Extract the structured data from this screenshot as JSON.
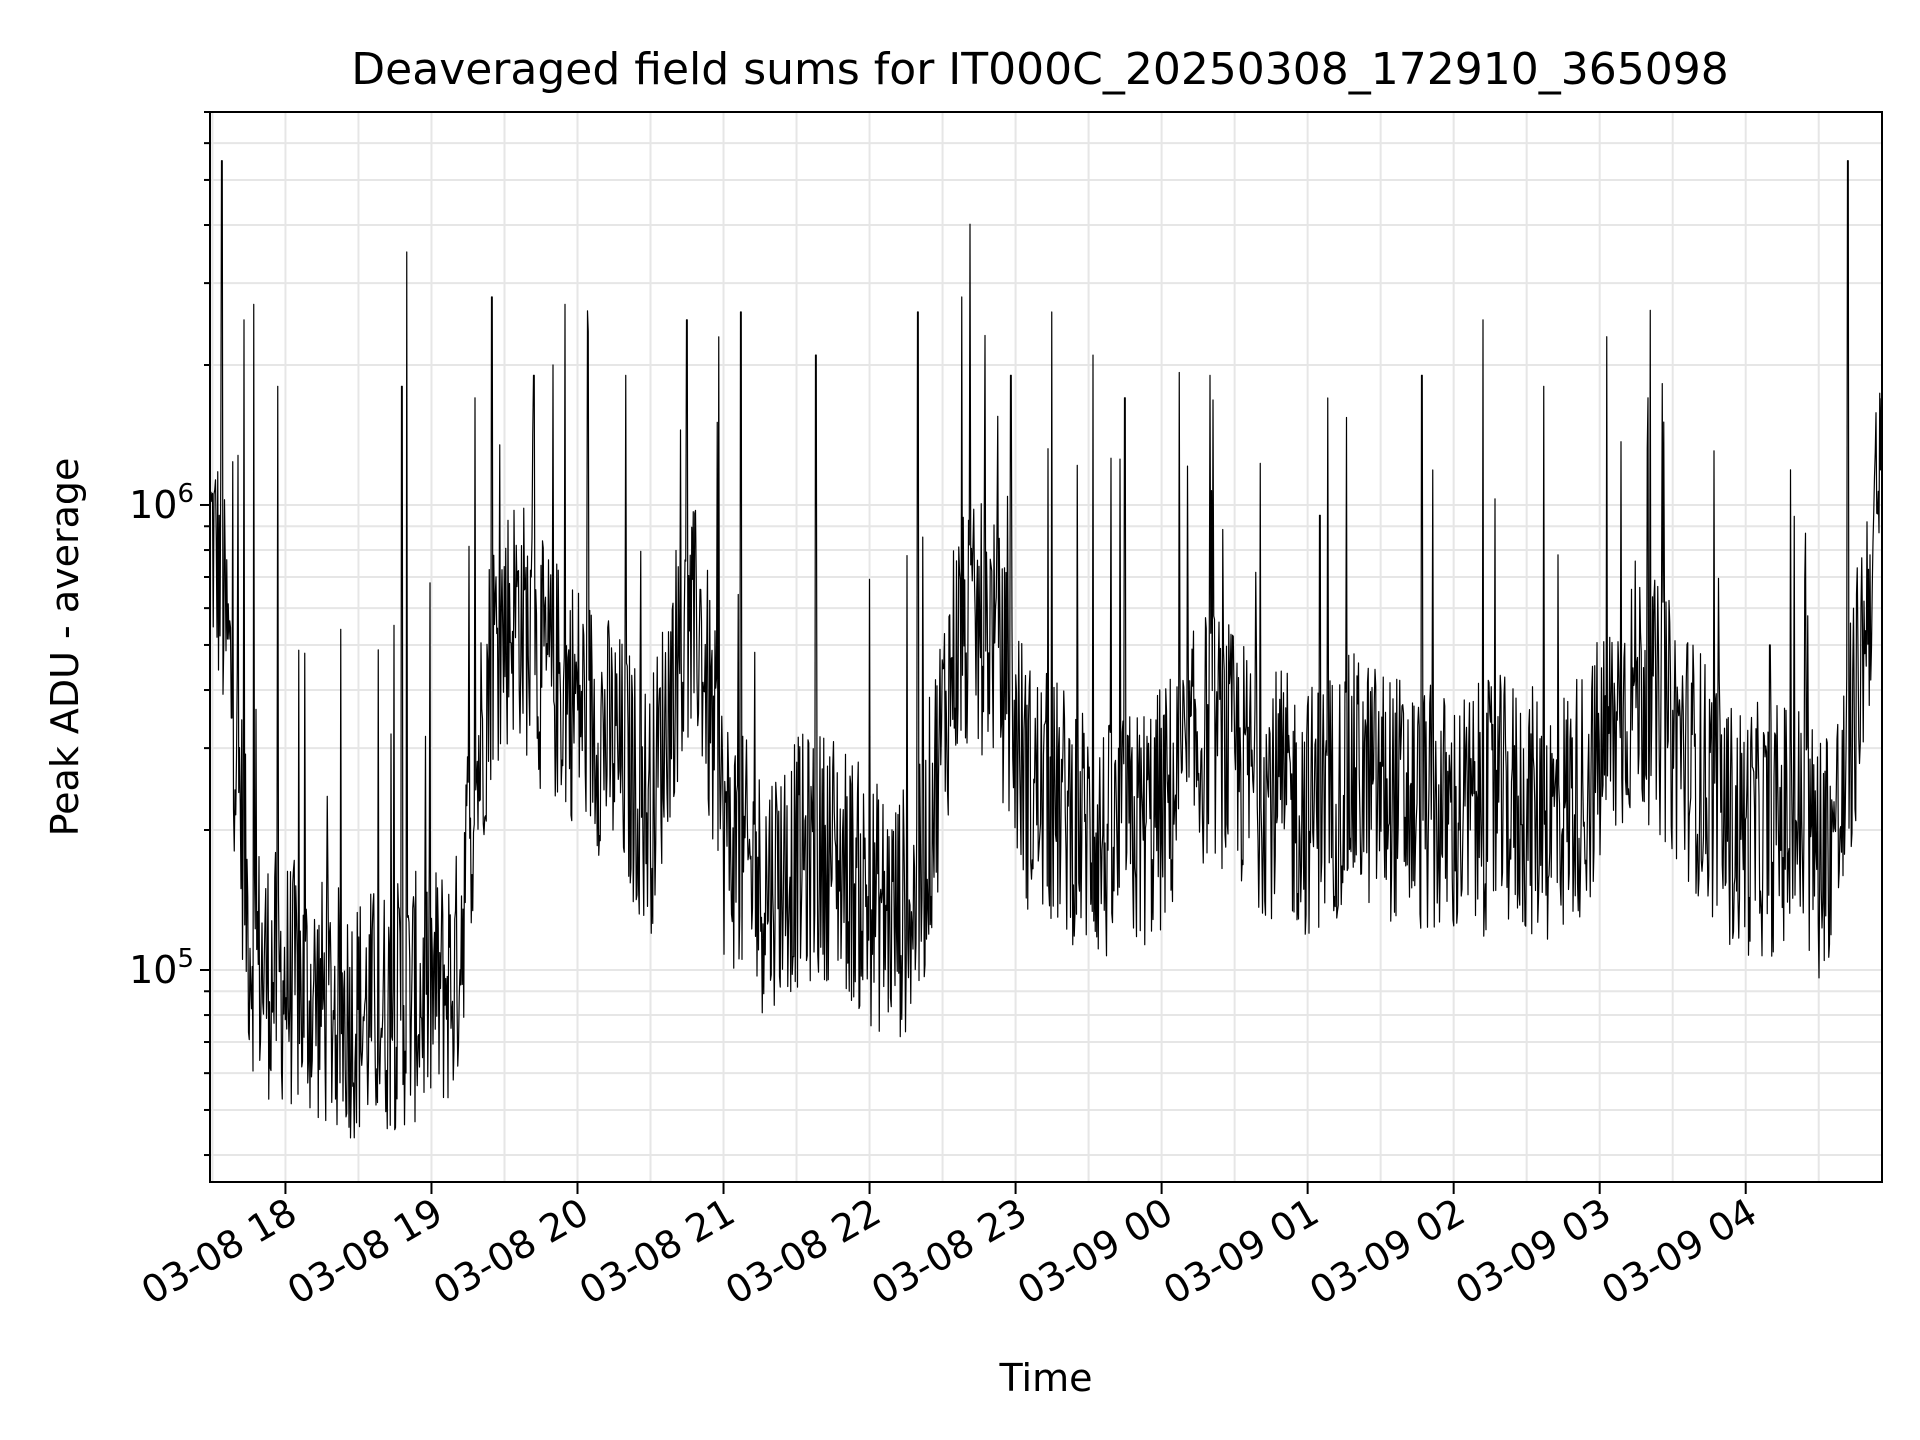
{
  "chart_data": {
    "type": "line",
    "title": "Deaveraged field sums for IT000C_20250308_172910_365098",
    "xlabel": "Time",
    "ylabel": "Peak ADU - average",
    "yscale": "log",
    "ylim": [
      35000,
      7000000
    ],
    "xlim": [
      "2025-03-08 17:29",
      "2025-03-09 04:56"
    ],
    "grid": true,
    "line_color": "#000000",
    "grid_color": "#e6e6e6",
    "x_ticks": [
      {
        "t": "2025-03-08 18:00",
        "label": "03-08 18"
      },
      {
        "t": "2025-03-08 19:00",
        "label": "03-08 19"
      },
      {
        "t": "2025-03-08 20:00",
        "label": "03-08 20"
      },
      {
        "t": "2025-03-08 21:00",
        "label": "03-08 21"
      },
      {
        "t": "2025-03-08 22:00",
        "label": "03-08 22"
      },
      {
        "t": "2025-03-08 23:00",
        "label": "03-08 23"
      },
      {
        "t": "2025-03-09 00:00",
        "label": "03-09 00"
      },
      {
        "t": "2025-03-09 01:00",
        "label": "03-09 01"
      },
      {
        "t": "2025-03-09 02:00",
        "label": "03-09 02"
      },
      {
        "t": "2025-03-09 03:00",
        "label": "03-09 03"
      },
      {
        "t": "2025-03-09 04:00",
        "label": "03-09 04"
      }
    ],
    "y_ticks": [
      {
        "v": 100000,
        "base": "10",
        "exp": "5"
      },
      {
        "v": 1000000,
        "base": "10",
        "exp": "6"
      }
    ],
    "series": [
      {
        "x": [
          "2025-03-08 17:29",
          "2025-03-08 17:33",
          "2025-03-08 17:37",
          "2025-03-08 17:41",
          "2025-03-08 17:45",
          "2025-03-08 17:50",
          "2025-03-08 18:00",
          "2025-03-08 18:10",
          "2025-03-08 18:20",
          "2025-03-08 18:30",
          "2025-03-08 18:40",
          "2025-03-08 18:50",
          "2025-03-08 19:00",
          "2025-03-08 19:10",
          "2025-03-08 19:15",
          "2025-03-08 19:25",
          "2025-03-08 19:35",
          "2025-03-08 19:45",
          "2025-03-08 20:00",
          "2025-03-08 20:15",
          "2025-03-08 20:30",
          "2025-03-08 20:40",
          "2025-03-08 20:50",
          "2025-03-08 21:00",
          "2025-03-08 21:15",
          "2025-03-08 21:30",
          "2025-03-08 21:45",
          "2025-03-08 22:00",
          "2025-03-08 22:10",
          "2025-03-08 22:20",
          "2025-03-08 22:35",
          "2025-03-08 22:50",
          "2025-03-08 23:05",
          "2025-03-08 23:20",
          "2025-03-08 23:40",
          "2025-03-09 00:00",
          "2025-03-09 00:20",
          "2025-03-09 00:40",
          "2025-03-09 01:00",
          "2025-03-09 01:20",
          "2025-03-09 01:40",
          "2025-03-09 02:00",
          "2025-03-09 02:20",
          "2025-03-09 02:40",
          "2025-03-09 02:55",
          "2025-03-09 03:15",
          "2025-03-09 03:35",
          "2025-03-09 03:55",
          "2025-03-09 04:10",
          "2025-03-09 04:20",
          "2025-03-09 04:30",
          "2025-03-09 04:40",
          "2025-03-09 04:56"
        ],
        "y": [
          900000,
          700000,
          450000,
          250000,
          120000,
          100000,
          95000,
          88000,
          82000,
          80000,
          82000,
          85000,
          90000,
          95000,
          180000,
          500000,
          600000,
          450000,
          380000,
          300000,
          220000,
          450000,
          550000,
          200000,
          150000,
          170000,
          180000,
          140000,
          130000,
          140000,
          500000,
          550000,
          250000,
          220000,
          180000,
          220000,
          330000,
          250000,
          220000,
          260000,
          230000,
          210000,
          230000,
          210000,
          250000,
          420000,
          300000,
          200000,
          200000,
          210000,
          180000,
          220000,
          1150000
        ],
        "spikes": [
          [
            "2025-03-08 17:34",
            5500000
          ],
          [
            "2025-03-08 17:43",
            2500000
          ],
          [
            "2025-03-08 17:47",
            2700000
          ],
          [
            "2025-03-08 17:57",
            1800000
          ],
          [
            "2025-03-08 18:08",
            480000
          ],
          [
            "2025-03-08 18:50",
            3500000
          ],
          [
            "2025-03-08 18:48",
            1800000
          ],
          [
            "2025-03-08 19:18",
            1700000
          ],
          [
            "2025-03-08 19:25",
            2800000
          ],
          [
            "2025-03-08 19:42",
            1900000
          ],
          [
            "2025-03-08 19:50",
            2000000
          ],
          [
            "2025-03-08 19:55",
            2700000
          ],
          [
            "2025-03-08 20:20",
            1900000
          ],
          [
            "2025-03-08 20:45",
            2500000
          ],
          [
            "2025-03-08 20:58",
            2300000
          ],
          [
            "2025-03-08 21:07",
            2600000
          ],
          [
            "2025-03-08 21:38",
            2100000
          ],
          [
            "2025-03-08 22:20",
            2600000
          ],
          [
            "2025-03-08 22:38",
            2800000
          ],
          [
            "2025-03-08 22:58",
            1900000
          ],
          [
            "2025-03-08 23:15",
            2600000
          ],
          [
            "2025-03-08 23:32",
            2100000
          ],
          [
            "2025-03-08 23:45",
            1700000
          ],
          [
            "2025-03-09 00:20",
            1900000
          ],
          [
            "2025-03-09 01:05",
            950000
          ],
          [
            "2025-03-09 01:47",
            1900000
          ],
          [
            "2025-03-09 02:12",
            2500000
          ],
          [
            "2025-03-09 02:37",
            1800000
          ],
          [
            "2025-03-09 03:20",
            1700000
          ],
          [
            "2025-03-09 04:10",
            500000
          ],
          [
            "2025-03-09 04:42",
            5500000
          ]
        ]
      }
    ]
  }
}
